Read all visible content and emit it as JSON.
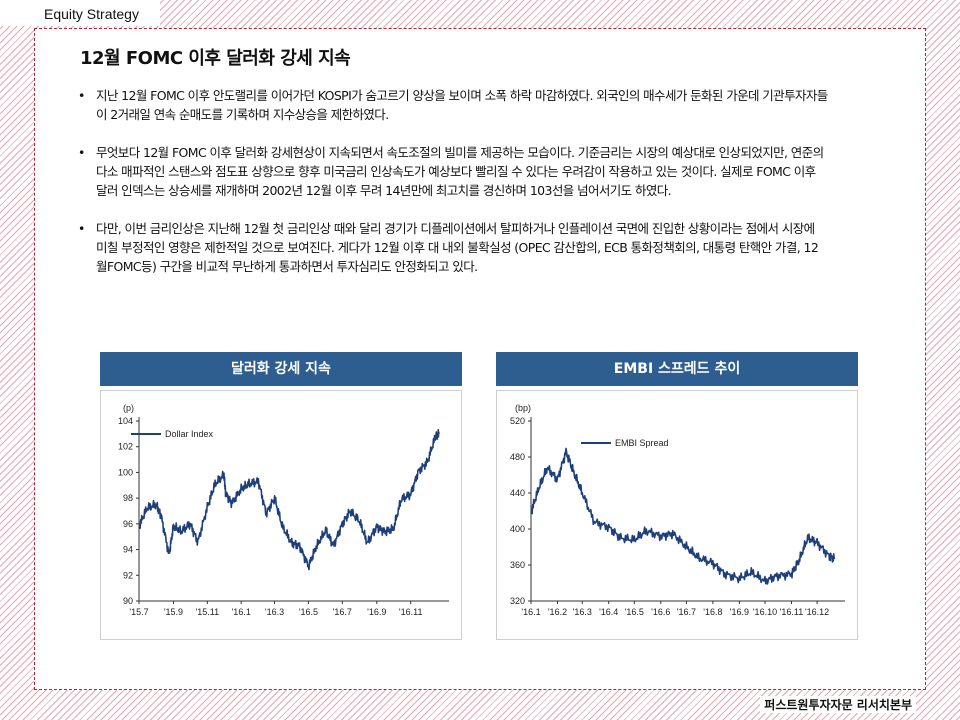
{
  "header": {
    "section": "Equity Strategy"
  },
  "title": "12월 FOMC 이후 달러화 강세 지속",
  "bullets": [
    "지난 12월 FOMC 이후 안도랠리를 이어가던 KOSPI가 숨고르기 양상을 보이며 소폭 하락 마감하였다. 외국인의 매수세가 둔화된 가운데 기관투자자들이 2거래일 연속 순매도를 기록하며 지수상승을 제한하였다.",
    "무엇보다 12월 FOMC 이후 달러화 강세현상이 지속되면서 속도조절의 빌미를 제공하는 모습이다. 기준금리는 시장의 예상대로 인상되었지만, 연준의 다소 매파적인 스탠스와 점도표 상향으로 향후 미국금리 인상속도가 예상보다 빨리질 수 있다는 우려감이 작용하고 있는 것이다. 실제로 FOMC 이후 달러 인덱스는 상승세를 재개하며 2002년 12월 이후 무려 14년만에 최고치를 경신하며 103선을 넘어서기도 하였다.",
    "다만, 이번 금리인상은 지난해 12월 첫 금리인상 때와 달리 경기가 디플레이션에서 탈피하거나 인플레이션 국면에 진입한 상황이라는 점에서 시장에 미칠 부정적인 영향은 제한적일 것으로 보여진다. 게다가 12월 이후 대 내외 불확실성 (OPEC 감산합의, ECB 통화정책회의, 대통령 탄핵안 가결, 12월FOMC등) 구간을 비교적 무난하게 통과하면서 투자심리도 안정화되고 있다."
  ],
  "footer": "퍼스트원투자자문 리서치본부",
  "chart_data": [
    {
      "type": "line",
      "title": "달러화 강세 지속",
      "unit": "(p)",
      "ylim": [
        90,
        104
      ],
      "yticks": [
        90,
        92,
        94,
        96,
        98,
        100,
        102,
        104
      ],
      "xticks": [
        "'15.7",
        "'15.9",
        "'15.11",
        "'16.1",
        "'16.3",
        "'16.5",
        "'16.7",
        "'16.9",
        "'16.11"
      ],
      "legend_position": "top-left",
      "color": "#1f3f7a",
      "series": [
        {
          "name": "Dollar Index",
          "x": [
            "2015-07-01",
            "2015-07-15",
            "2015-08-01",
            "2015-08-10",
            "2015-08-24",
            "2015-09-01",
            "2015-09-15",
            "2015-10-01",
            "2015-10-15",
            "2015-11-01",
            "2015-11-15",
            "2015-12-01",
            "2015-12-04",
            "2015-12-15",
            "2016-01-01",
            "2016-01-15",
            "2016-02-01",
            "2016-02-15",
            "2016-03-01",
            "2016-03-15",
            "2016-04-01",
            "2016-04-15",
            "2016-05-01",
            "2016-05-15",
            "2016-06-01",
            "2016-06-15",
            "2016-07-01",
            "2016-07-15",
            "2016-08-01",
            "2016-08-15",
            "2016-09-01",
            "2016-09-15",
            "2016-10-01",
            "2016-10-15",
            "2016-11-01",
            "2016-11-15",
            "2016-12-01",
            "2016-12-15",
            "2016-12-22"
          ],
          "values": [
            95.8,
            97.2,
            97.5,
            96.6,
            93.6,
            95.8,
            95.4,
            96.0,
            94.6,
            97.3,
            99.1,
            99.8,
            98.4,
            97.6,
            98.7,
            99.1,
            99.3,
            96.8,
            98.0,
            95.8,
            94.5,
            94.3,
            92.7,
            94.2,
            95.5,
            94.3,
            96.0,
            97.0,
            96.2,
            94.5,
            95.8,
            95.4,
            95.6,
            97.9,
            98.3,
            100.1,
            100.8,
            102.7,
            103.0
          ]
        }
      ]
    },
    {
      "type": "line",
      "title": "EMBI 스프레드 추이",
      "unit": "(bp)",
      "ylim": [
        320,
        520
      ],
      "yticks": [
        320,
        360,
        400,
        440,
        480,
        520
      ],
      "xticks": [
        "'16.1",
        "'16.2",
        "'16.3",
        "'16.4",
        "'16.5",
        "'16.6",
        "'16.7",
        "'16.8",
        "'16.9",
        "'16.10",
        "'16.11",
        "'16.12"
      ],
      "legend_position": "top-right",
      "color": "#1f3f7a",
      "series": [
        {
          "name": "EMBI Spread",
          "x": [
            "2016-01-01",
            "2016-01-10",
            "2016-01-20",
            "2016-02-01",
            "2016-02-11",
            "2016-02-20",
            "2016-03-01",
            "2016-03-15",
            "2016-04-01",
            "2016-04-15",
            "2016-05-01",
            "2016-05-15",
            "2016-06-01",
            "2016-06-15",
            "2016-07-01",
            "2016-07-15",
            "2016-08-01",
            "2016-08-15",
            "2016-09-01",
            "2016-09-15",
            "2016-10-01",
            "2016-10-15",
            "2016-11-01",
            "2016-11-10",
            "2016-11-20",
            "2016-12-01",
            "2016-12-15",
            "2016-12-22"
          ],
          "values": [
            418,
            445,
            468,
            455,
            486,
            463,
            440,
            408,
            402,
            390,
            388,
            398,
            392,
            395,
            380,
            368,
            362,
            350,
            345,
            352,
            342,
            348,
            350,
            365,
            390,
            385,
            370,
            367
          ]
        }
      ]
    }
  ]
}
